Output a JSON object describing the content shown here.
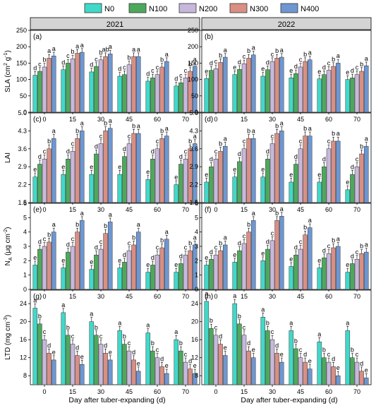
{
  "legend": [
    {
      "name": "N0",
      "color": "#40D9C9"
    },
    {
      "name": "N100",
      "color": "#4EA85C"
    },
    {
      "name": "N200",
      "color": "#C7B8DB"
    },
    {
      "name": "N300",
      "color": "#D98F84"
    },
    {
      "name": "N400",
      "color": "#6E97D1"
    }
  ],
  "columns": [
    "2021",
    "2022"
  ],
  "xlabel": "Day after tuber-expanding (d)",
  "chart_data": {
    "type": "bar",
    "categories": [
      "0",
      "15",
      "30",
      "45",
      "60",
      "70"
    ],
    "series_names": [
      "N0",
      "N100",
      "N200",
      "N300",
      "N400"
    ],
    "rows": [
      {
        "ylabel": "SLA (cm² g⁻¹)",
        "ylabel_main": "SLA (cm",
        "ylabel_sup1": "2",
        "ylabel_mid": " g",
        "ylabel_sup2": "-1",
        "ylabel_end": ")",
        "ylim": [
          0,
          250
        ],
        "yticks": [
          0,
          50,
          100,
          150,
          200,
          250
        ],
        "panels": [
          {
            "label": "(a)",
            "values": [
              [
                113,
                125,
                138,
                165,
                172
              ],
              [
                130,
                150,
                163,
                180,
                183
              ],
              [
                123,
                140,
                160,
                170,
                178
              ],
              [
                110,
                115,
                145,
                170,
                170
              ],
              [
                95,
                105,
                115,
                138,
                155
              ],
              [
                80,
                90,
                105,
                125,
                140
              ]
            ],
            "letters": [
              [
                "d",
                "c",
                "b",
                "a",
                "a"
              ],
              [
                "d",
                "c",
                "b",
                "a",
                "a"
              ],
              [
                "d",
                "c",
                "b",
                "ab",
                "a"
              ],
              [
                "d",
                "c",
                "b",
                "a",
                "a"
              ],
              [
                "d",
                "c",
                "c",
                "b",
                "a"
              ],
              [
                "d",
                "c",
                "c",
                "b",
                "a"
              ]
            ]
          },
          {
            "label": "(b)",
            "values": [
              [
                103,
                128,
                133,
                152,
                168
              ],
              [
                115,
                131,
                148,
                165,
                175
              ],
              [
                110,
                130,
                155,
                165,
                168
              ],
              [
                105,
                118,
                138,
                155,
                160
              ],
              [
                102,
                115,
                128,
                140,
                150
              ],
              [
                100,
                105,
                115,
                125,
                142
              ]
            ],
            "letters": [
              [
                "e",
                "d",
                "c",
                "b",
                "a"
              ],
              [
                "e",
                "d",
                "c",
                "b",
                "a"
              ],
              [
                "e",
                "d",
                "c",
                "b",
                "a"
              ],
              [
                "e",
                "d",
                "c",
                "b",
                "a"
              ],
              [
                "e",
                "d",
                "c",
                "b",
                "a"
              ],
              [
                "e",
                "d",
                "c",
                "b",
                "a"
              ]
            ]
          }
        ]
      },
      {
        "ylabel": "LAI",
        "ylim": [
          1.5,
          5.0
        ],
        "yticks": [
          1.5,
          2.2,
          2.9,
          3.6,
          4.3,
          5.0
        ],
        "panels": [
          {
            "label": "(c)",
            "values": [
              [
                2.5,
                3.0,
                3.2,
                3.6,
                4.0
              ],
              [
                2.6,
                3.2,
                3.5,
                4.0,
                4.3
              ],
              [
                2.6,
                3.4,
                3.8,
                4.3,
                4.4
              ],
              [
                2.6,
                3.3,
                3.8,
                4.2,
                4.2
              ],
              [
                2.4,
                3.2,
                3.6,
                4.0,
                4.1
              ],
              [
                2.2,
                3.0,
                3.2,
                3.6,
                3.8
              ]
            ],
            "letters": [
              [
                "e",
                "d",
                "c",
                "b",
                "a"
              ],
              [
                "e",
                "d",
                "c",
                "b",
                "a"
              ],
              [
                "e",
                "d",
                "c",
                "b",
                "a"
              ],
              [
                "e",
                "d",
                "c",
                "b",
                "a"
              ],
              [
                "e",
                "d",
                "c",
                "b",
                "a"
              ],
              [
                "e",
                "d",
                "c",
                "b",
                "a"
              ]
            ]
          },
          {
            "label": "(d)",
            "values": [
              [
                2.3,
                2.9,
                3.2,
                3.5,
                3.7
              ],
              [
                2.5,
                3.1,
                3.6,
                4.0,
                4.0
              ],
              [
                2.5,
                3.2,
                3.8,
                4.2,
                4.3
              ],
              [
                2.3,
                3.0,
                3.6,
                4.1,
                4.1
              ],
              [
                2.3,
                2.9,
                3.6,
                3.9,
                3.9
              ],
              [
                2.0,
                2.6,
                2.9,
                3.4,
                3.7
              ]
            ],
            "letters": [
              [
                "e",
                "d",
                "c",
                "b",
                "a"
              ],
              [
                "e",
                "d",
                "c",
                "b",
                "a"
              ],
              [
                "e",
                "d",
                "c",
                "b",
                "a"
              ],
              [
                "e",
                "d",
                "c",
                "b",
                "a"
              ],
              [
                "e",
                "d",
                "c",
                "b",
                "a"
              ],
              [
                "e",
                "d",
                "c",
                "b",
                "a"
              ]
            ]
          }
        ]
      },
      {
        "ylabel": "NA (μg cm⁻²)",
        "ylabel_main": "N",
        "ylabel_sub": "A",
        "ylabel_mid": " (μg cm",
        "ylabel_sup2": "-2",
        "ylabel_end": ")",
        "ylim": [
          0,
          6
        ],
        "yticks": [
          0,
          1,
          2,
          3,
          4,
          5,
          6
        ],
        "panels": [
          {
            "label": "(e)",
            "values": [
              [
                1.7,
                2.8,
                3.0,
                3.3,
                4.0
              ],
              [
                1.5,
                2.6,
                3.0,
                4.0,
                4.8
              ],
              [
                1.4,
                2.4,
                2.8,
                3.9,
                4.7
              ],
              [
                1.5,
                1.9,
                2.7,
                3.1,
                4.0
              ],
              [
                1.2,
                1.7,
                2.4,
                2.9,
                3.5
              ],
              [
                1.2,
                1.8,
                2.4,
                2.7,
                3.1
              ]
            ],
            "letters": [
              [
                "e",
                "d",
                "c",
                "b",
                "a"
              ],
              [
                "e",
                "d",
                "c",
                "b",
                "a"
              ],
              [
                "e",
                "d",
                "c",
                "b",
                "a"
              ],
              [
                "e",
                "d",
                "c",
                "b",
                "a"
              ],
              [
                "e",
                "d",
                "c",
                "b",
                "a"
              ],
              [
                "e",
                "d",
                "c",
                "b",
                "a"
              ]
            ]
          },
          {
            "label": "(f)",
            "values": [
              [
                1.7,
                2.1,
                2.4,
                2.7,
                3.1
              ],
              [
                1.9,
                2.7,
                3.2,
                4.0,
                4.8
              ],
              [
                2.0,
                2.8,
                3.4,
                4.8,
                5.1
              ],
              [
                1.6,
                2.4,
                2.8,
                3.8,
                4.3
              ],
              [
                1.5,
                2.2,
                2.5,
                2.9,
                3.0
              ],
              [
                1.2,
                1.8,
                2.1,
                2.5,
                2.6
              ]
            ],
            "letters": [
              [
                "e",
                "d",
                "c",
                "b",
                "a"
              ],
              [
                "e",
                "d",
                "c",
                "b",
                "a"
              ],
              [
                "e",
                "d",
                "c",
                "b",
                "a"
              ],
              [
                "e",
                "d",
                "c",
                "b",
                "a"
              ],
              [
                "e",
                "d",
                "c",
                "b",
                "a"
              ],
              [
                "e",
                "d",
                "c",
                "b",
                "a"
              ]
            ]
          }
        ]
      },
      {
        "ylabel": "LTD (mg cm⁻³)",
        "ylabel_main": "LTD (mg cm",
        "ylabel_sup2": "-3",
        "ylabel_end": ")",
        "ylim": [
          6,
          27
        ],
        "yticks": [
          8,
          12,
          16,
          20,
          24
        ],
        "panels": [
          {
            "label": "(g)",
            "values": [
              [
                23.0,
                19.5,
                16.0,
                13.0,
                11.5
              ],
              [
                22.0,
                17.0,
                15.0,
                12.5,
                10.5
              ],
              [
                20.0,
                17.0,
                15.0,
                13.0,
                11.5
              ],
              [
                18.0,
                15.0,
                13.5,
                11.5,
                9.0
              ],
              [
                17.5,
                13.5,
                12.0,
                10.0,
                8.5
              ],
              [
                16.0,
                13.5,
                11.0,
                9.5,
                8.5
              ]
            ],
            "letters": [
              [
                "a",
                "b",
                "c",
                "d",
                "e"
              ],
              [
                "a",
                "b",
                "c",
                "d",
                "e"
              ],
              [
                "a",
                "b",
                "c",
                "d",
                "e"
              ],
              [
                "a",
                "b",
                "c",
                "d",
                "e"
              ],
              [
                "a",
                "b",
                "c",
                "d",
                "e"
              ],
              [
                "a",
                "b",
                "c",
                "d",
                "e"
              ]
            ]
          },
          {
            "label": "(h)",
            "values": [
              [
                24.5,
                18.5,
                17.0,
                15.0,
                12.5
              ],
              [
                24.0,
                19.5,
                17.0,
                13.5,
                12.0
              ],
              [
                21.0,
                18.0,
                16.0,
                13.0,
                11.0
              ],
              [
                18.0,
                14.0,
                12.0,
                11.0,
                9.5
              ],
              [
                15.5,
                12.0,
                11.0,
                10.0,
                8.0
              ],
              [
                18.0,
                12.0,
                11.0,
                9.0,
                7.5
              ]
            ],
            "letters": [
              [
                "a",
                "b",
                "c",
                "d",
                "e"
              ],
              [
                "a",
                "b",
                "c",
                "d",
                "e"
              ],
              [
                "a",
                "b",
                "c",
                "d",
                "e"
              ],
              [
                "a",
                "b",
                "c",
                "d",
                "e"
              ],
              [
                "a",
                "b",
                "c",
                "d",
                "e"
              ],
              [
                "a",
                "b",
                "c",
                "d",
                "e"
              ]
            ]
          }
        ]
      }
    ]
  }
}
